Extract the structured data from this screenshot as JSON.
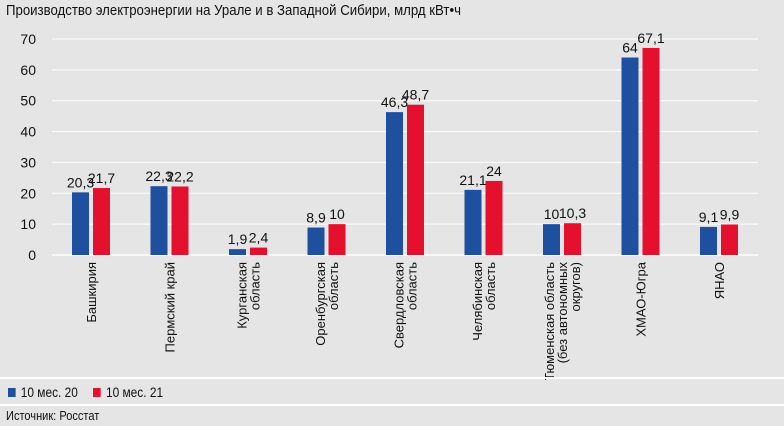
{
  "chart_data": {
    "type": "bar",
    "title": "Производство электроэнергии на Урале и в Западной Сибири, млрд кВт•ч",
    "categories": [
      [
        "Башкирия"
      ],
      [
        "Пермский край"
      ],
      [
        "Курганская",
        "область"
      ],
      [
        "Оренбургская",
        "область"
      ],
      [
        "Свердловская",
        "область"
      ],
      [
        "Челябинская",
        "область"
      ],
      [
        "Тюменская область",
        "(без автономных",
        "округов)"
      ],
      [
        "ХМАО-Югра"
      ],
      [
        "ЯНАО"
      ]
    ],
    "series": [
      {
        "name": "10 мес. 20",
        "color": "#1f4f9f",
        "values": [
          20.3,
          22.3,
          1.9,
          8.9,
          46.3,
          21.1,
          10,
          64,
          9.1
        ],
        "labels": [
          "20,3",
          "22,3",
          "1,9",
          "8,9",
          "46,3",
          "21,1",
          "10",
          "64",
          "9,1"
        ]
      },
      {
        "name": "10 мес. 21",
        "color": "#e4102d",
        "values": [
          21.7,
          22.2,
          2.4,
          10,
          48.7,
          24,
          10.3,
          67.1,
          9.9
        ],
        "labels": [
          "21,7",
          "22,2",
          "2,4",
          "10",
          "48,7",
          "24",
          "10,3",
          "67,1",
          "9,9"
        ]
      }
    ],
    "yticks": [
      "0",
      "10",
      "20",
      "30",
      "40",
      "50",
      "60",
      "70"
    ],
    "ylim": [
      0,
      70
    ],
    "grid": true,
    "legend": "bottom-left"
  },
  "source": "Источник: Росстат"
}
